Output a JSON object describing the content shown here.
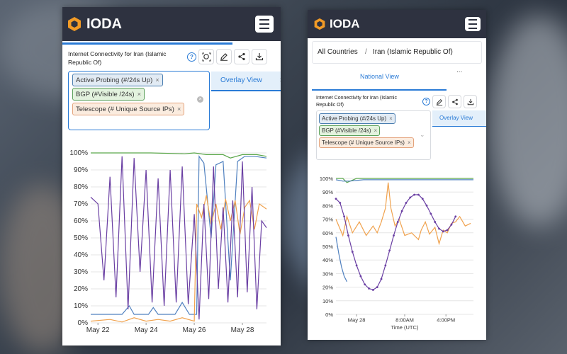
{
  "left": {
    "brand": "IODA",
    "chart_title": "Internet Connectivity for Iran (Islamic Republic Of)",
    "help_label": "?",
    "tags": [
      {
        "label": "Active Probing (#/24s Up)"
      },
      {
        "label": "BGP (#Visible /24s)"
      },
      {
        "label": "Telescope (# Unique Source IPs)"
      }
    ],
    "tab_label": "Overlay View",
    "tab_next": "S"
  },
  "right": {
    "brand": "IODA",
    "breadcrumb_root": "All Countries",
    "breadcrumb_sep": "/",
    "breadcrumb_current": "Iran (Islamic Republic Of)",
    "tab_label": "National View",
    "tab_more": "...",
    "chart_title": "Internet Connectivity for Iran (Islamic Republic Of)",
    "help_label": "?",
    "tags": [
      {
        "label": "Active Probing (#/24s Up)"
      },
      {
        "label": "BGP (#Visible /24s)"
      },
      {
        "label": "Telescope (# Unique Source IPs)"
      }
    ],
    "overlay_label": "Overlay View"
  },
  "colors": {
    "bgp": "#5ba74a",
    "active_probing": "#4f80bf",
    "telescope": "#f0a24e",
    "darknet": "#6a3fa3"
  },
  "chart_data": [
    {
      "type": "line",
      "yticks": [
        "100%",
        "90%",
        "80%",
        "70%",
        "60%",
        "50%",
        "40%",
        "30%",
        "20%",
        "10%",
        "0%"
      ],
      "ylim": [
        0,
        100
      ],
      "xticks": [
        {
          "x": 0,
          "label": "May 22"
        },
        {
          "x": 2,
          "label": "May 24"
        },
        {
          "x": 4,
          "label": "May 26"
        },
        {
          "x": 6,
          "label": "May 28"
        }
      ],
      "xlim": [
        -0.3,
        7.0
      ],
      "series": [
        {
          "key": "bgp",
          "values": [
            [
              -0.3,
              100
            ],
            [
              1.0,
              100
            ],
            [
              2.2,
              100
            ],
            [
              3.6,
              99.5
            ],
            [
              4.0,
              100
            ],
            [
              4.5,
              99
            ],
            [
              5.2,
              99
            ],
            [
              5.5,
              97
            ],
            [
              6.0,
              99
            ],
            [
              6.6,
              99
            ],
            [
              7.0,
              98
            ]
          ]
        },
        {
          "key": "active_probing",
          "values": [
            [
              -0.3,
              5
            ],
            [
              1.0,
              5
            ],
            [
              1.3,
              10
            ],
            [
              1.5,
              5
            ],
            [
              2.1,
              5
            ],
            [
              2.3,
              9
            ],
            [
              2.5,
              5
            ],
            [
              3.2,
              5
            ],
            [
              3.5,
              12
            ],
            [
              3.8,
              5
            ],
            [
              4.1,
              5
            ],
            [
              4.2,
              98
            ],
            [
              4.4,
              94
            ],
            [
              4.7,
              50
            ],
            [
              4.9,
              93
            ],
            [
              5.2,
              95
            ],
            [
              5.5,
              25
            ],
            [
              5.8,
              95
            ],
            [
              6.1,
              98
            ],
            [
              6.5,
              98
            ],
            [
              7.0,
              97
            ]
          ]
        },
        {
          "key": "telescope",
          "values": [
            [
              -0.3,
              1
            ],
            [
              0.5,
              2
            ],
            [
              1.0,
              0.5
            ],
            [
              1.5,
              3
            ],
            [
              2.0,
              1
            ],
            [
              2.5,
              2
            ],
            [
              3.0,
              1
            ],
            [
              3.5,
              3
            ],
            [
              4.0,
              1
            ],
            [
              4.1,
              70
            ],
            [
              4.3,
              62
            ],
            [
              4.5,
              75
            ],
            [
              4.7,
              58
            ],
            [
              4.9,
              70
            ],
            [
              5.1,
              55
            ],
            [
              5.3,
              73
            ],
            [
              5.5,
              60
            ],
            [
              5.7,
              72
            ],
            [
              5.9,
              52
            ],
            [
              6.1,
              68
            ],
            [
              6.3,
              72
            ],
            [
              6.5,
              55
            ],
            [
              6.7,
              70
            ],
            [
              7.0,
              67
            ]
          ]
        },
        {
          "key": "darknet",
          "values": [
            [
              -0.3,
              74
            ],
            [
              0,
              70
            ],
            [
              0.25,
              25
            ],
            [
              0.5,
              86
            ],
            [
              0.75,
              15
            ],
            [
              1.0,
              98
            ],
            [
              1.25,
              8
            ],
            [
              1.5,
              97
            ],
            [
              1.75,
              30
            ],
            [
              2.0,
              90
            ],
            [
              2.25,
              12
            ],
            [
              2.5,
              85
            ],
            [
              2.75,
              10
            ],
            [
              3.0,
              90
            ],
            [
              3.25,
              12
            ],
            [
              3.5,
              92
            ],
            [
              3.75,
              11
            ],
            [
              4.0,
              64
            ],
            [
              4.2,
              2
            ],
            [
              4.4,
              70
            ],
            [
              4.6,
              14
            ],
            [
              4.8,
              92
            ],
            [
              5.0,
              20
            ],
            [
              5.2,
              68
            ],
            [
              5.4,
              12
            ],
            [
              5.6,
              72
            ],
            [
              5.8,
              15
            ],
            [
              6.0,
              95
            ],
            [
              6.2,
              18
            ],
            [
              6.4,
              80
            ],
            [
              6.6,
              8
            ],
            [
              6.8,
              60
            ],
            [
              7.0,
              56
            ]
          ]
        }
      ]
    },
    {
      "type": "line",
      "yticks": [
        "100%",
        "90%",
        "80%",
        "70%",
        "60%",
        "50%",
        "40%",
        "30%",
        "20%",
        "10%",
        "0%"
      ],
      "ylim": [
        0,
        100
      ],
      "xticks": [
        {
          "x": 0.15,
          "label": "May 28"
        },
        {
          "x": 0.5,
          "label": "8:00AM"
        },
        {
          "x": 0.8,
          "label": "4:00PM"
        }
      ],
      "xlabel": "Time (UTC)",
      "xlim": [
        0,
        1
      ],
      "series": [
        {
          "key": "bgp",
          "values": [
            [
              0,
              100
            ],
            [
              0.05,
              100
            ],
            [
              0.08,
              97
            ],
            [
              0.15,
              100
            ],
            [
              0.5,
              100
            ],
            [
              0.8,
              100
            ],
            [
              1.0,
              100
            ]
          ]
        },
        {
          "key": "active_probing",
          "values": [
            [
              0,
              99
            ],
            [
              0.05,
              98
            ],
            [
              0.1,
              98
            ],
            [
              0.2,
              99
            ],
            [
              0.5,
              99
            ],
            [
              0.8,
              99
            ],
            [
              1.0,
              99
            ]
          ]
        },
        {
          "key": "telescope",
          "values": [
            [
              0,
              70
            ],
            [
              0.05,
              58
            ],
            [
              0.08,
              72
            ],
            [
              0.12,
              60
            ],
            [
              0.17,
              68
            ],
            [
              0.22,
              58
            ],
            [
              0.27,
              65
            ],
            [
              0.3,
              60
            ],
            [
              0.33,
              68
            ],
            [
              0.36,
              78
            ],
            [
              0.38,
              97
            ],
            [
              0.4,
              78
            ],
            [
              0.43,
              65
            ],
            [
              0.46,
              70
            ],
            [
              0.5,
              58
            ],
            [
              0.55,
              60
            ],
            [
              0.6,
              55
            ],
            [
              0.62,
              62
            ],
            [
              0.65,
              68
            ],
            [
              0.68,
              59
            ],
            [
              0.72,
              64
            ],
            [
              0.75,
              52
            ],
            [
              0.78,
              62
            ],
            [
              0.81,
              60
            ],
            [
              0.84,
              67
            ],
            [
              0.87,
              68
            ],
            [
              0.9,
              72
            ],
            [
              0.94,
              65
            ],
            [
              0.98,
              67
            ]
          ]
        },
        {
          "key": "darknet",
          "values": [
            [
              0,
              85
            ],
            [
              0.03,
              82
            ],
            [
              0.06,
              72
            ],
            [
              0.09,
              58
            ],
            [
              0.12,
              46
            ],
            [
              0.15,
              36
            ],
            [
              0.18,
              28
            ],
            [
              0.21,
              22
            ],
            [
              0.24,
              19
            ],
            [
              0.27,
              18
            ],
            [
              0.3,
              20
            ],
            [
              0.33,
              26
            ],
            [
              0.36,
              36
            ],
            [
              0.39,
              47
            ],
            [
              0.42,
              58
            ],
            [
              0.45,
              68
            ],
            [
              0.48,
              76
            ],
            [
              0.51,
              82
            ],
            [
              0.54,
              86
            ],
            [
              0.57,
              88
            ],
            [
              0.6,
              88
            ],
            [
              0.63,
              85
            ],
            [
              0.66,
              80
            ],
            [
              0.69,
              74
            ],
            [
              0.72,
              68
            ],
            [
              0.75,
              63
            ],
            [
              0.78,
              61
            ],
            [
              0.81,
              62
            ],
            [
              0.84,
              66
            ],
            [
              0.87,
              72
            ]
          ]
        },
        {
          "key": "active_probing",
          "values": [
            [
              0,
              57
            ],
            [
              0.02,
              45
            ],
            [
              0.04,
              35
            ],
            [
              0.06,
              28
            ],
            [
              0.08,
              24
            ]
          ]
        }
      ]
    }
  ]
}
